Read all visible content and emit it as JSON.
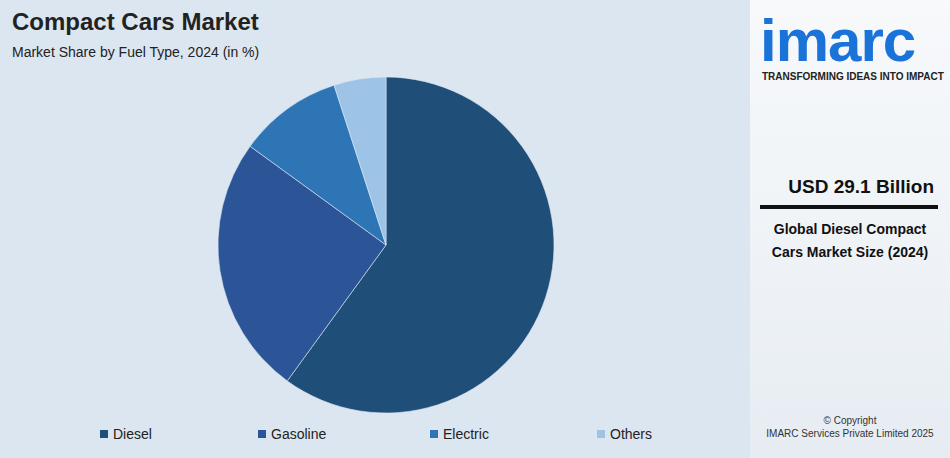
{
  "chart_data": {
    "type": "pie",
    "title": "Compact Cars Market",
    "subtitle": "Market Share by Fuel Type, 2024 (in %)",
    "categories": [
      "Diesel",
      "Gasoline",
      "Electric",
      "Others"
    ],
    "values": [
      60,
      25,
      10,
      5
    ],
    "colors": [
      "#1f4e79",
      "#2c5597",
      "#2e75b6",
      "#9dc3e6"
    ],
    "legend": "bottom",
    "data_labels": false,
    "annotations": {
      "logo": "imarc",
      "tagline": "TRANSFORMING IDEAS INTO IMPACT",
      "headline": "USD 29.1 Billion",
      "caption": "Global Diesel Compact Cars Market Size (2024)",
      "copyright": "© Copyright",
      "publisher": "IMARC Services Private Limited 2025"
    }
  }
}
